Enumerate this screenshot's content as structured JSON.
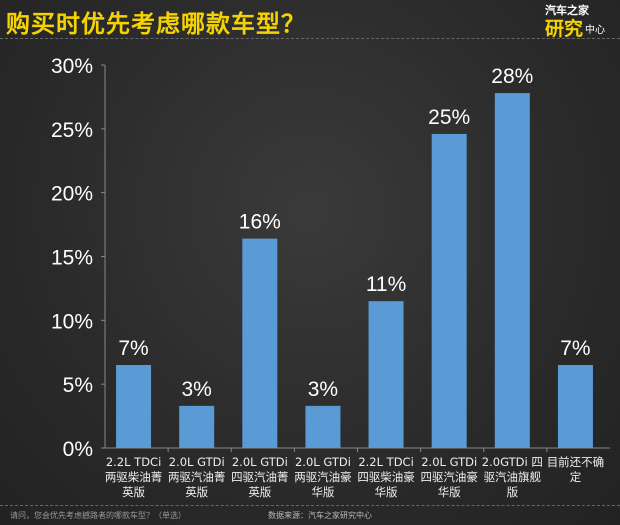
{
  "title": "购买时优先考虑哪款车型？",
  "logo": {
    "line1": "汽车之家",
    "line2": "研究",
    "line3": "中心"
  },
  "footer": {
    "question": "请问，您会优先考虑撼路者的哪款车型？（单选）",
    "source": "数据来源：汽车之家研究中心"
  },
  "colors": {
    "bar": "#5b9bd5",
    "title": "#f5d300"
  },
  "chart_data": {
    "type": "bar",
    "title": "购买时优先考虑哪款车型？",
    "categories": [
      [
        "2.2L TDCi",
        "两驱柴油菁",
        "英版"
      ],
      [
        "2.0L GTDi",
        "两驱汽油菁",
        "英版"
      ],
      [
        "2.0L GTDi",
        "四驱汽油菁",
        "英版"
      ],
      [
        "2.0L GTDi",
        "两驱汽油豪",
        "华版"
      ],
      [
        "2.2L TDCi",
        "四驱柴油豪",
        "华版"
      ],
      [
        "2.0L GTDi",
        "四驱汽油豪",
        "华版"
      ],
      [
        "2.0GTDi 四",
        "驱汽油旗舰",
        "版"
      ],
      [
        "目前还不确",
        "定"
      ]
    ],
    "values": [
      6.5,
      3.3,
      16.4,
      3.3,
      11.5,
      24.6,
      27.8,
      6.5
    ],
    "data_labels": [
      "7%",
      "3%",
      "16%",
      "3%",
      "11%",
      "25%",
      "28%",
      "7%"
    ],
    "yticks": [
      "0%",
      "5%",
      "10%",
      "15%",
      "20%",
      "25%",
      "30%"
    ],
    "ylim": [
      0,
      30
    ],
    "grid": false
  }
}
